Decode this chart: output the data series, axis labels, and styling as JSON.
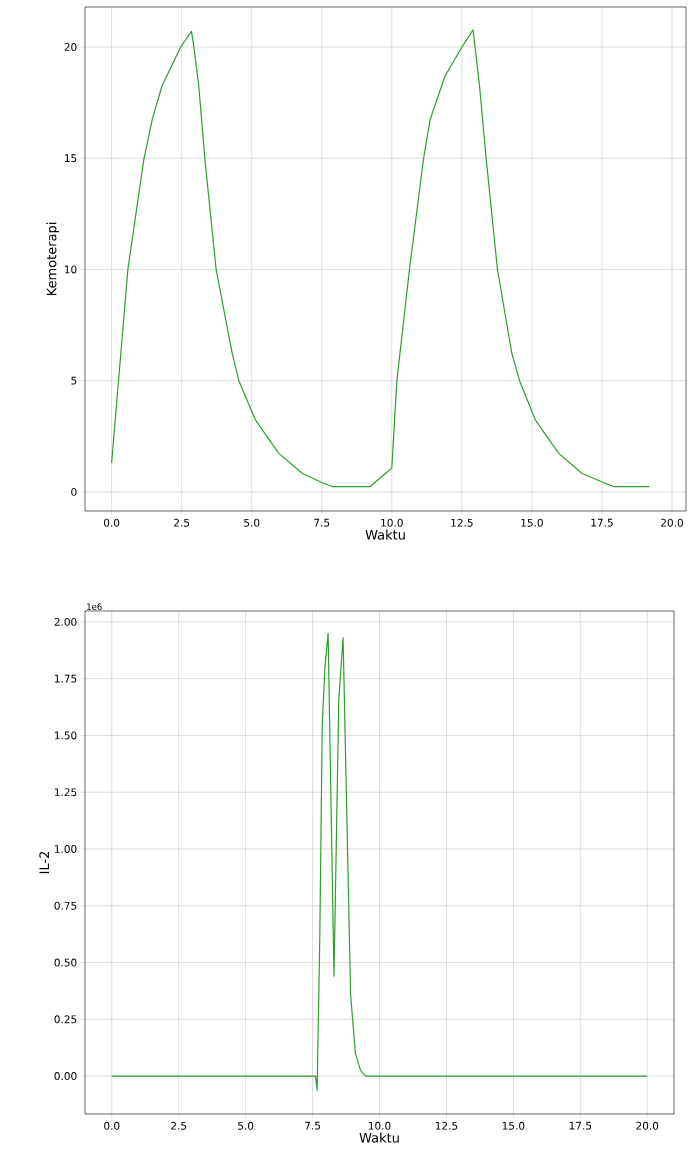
{
  "chart_data": [
    {
      "type": "line",
      "xlabel": "Waktu",
      "ylabel": "Kemoterapi",
      "color": "#2ca02c",
      "grid": true,
      "x": [
        0.0,
        0.58,
        1.15,
        1.45,
        1.8,
        2.46,
        2.85,
        2.93,
        3.11,
        3.33,
        3.73,
        4.3,
        4.54,
        5.13,
        5.96,
        6.8,
        7.5,
        7.87,
        9.23,
        10.0,
        10.18,
        10.63,
        11.13,
        11.37,
        11.9,
        12.5,
        12.9,
        13.13,
        13.37,
        13.77,
        14.28,
        14.56,
        15.12,
        15.95,
        16.78,
        17.55,
        17.91,
        19.19
      ],
      "values": [
        1.3,
        10.0,
        14.95,
        16.75,
        18.26,
        19.99,
        20.7,
        20.06,
        18.26,
        14.95,
        10.0,
        6.25,
        5.0,
        3.24,
        1.74,
        0.84,
        0.42,
        0.24,
        0.24,
        1.07,
        5.0,
        10.0,
        14.95,
        16.75,
        18.7,
        19.99,
        20.77,
        18.26,
        14.95,
        10.0,
        6.25,
        5.0,
        3.24,
        1.74,
        0.84,
        0.42,
        0.24,
        0.24
      ],
      "xlim": [
        -0.95,
        20.5
      ],
      "ylim": [
        -0.86,
        21.8
      ],
      "xticks": [
        {
          "value": 0,
          "label": "0.0"
        },
        {
          "value": 2.5,
          "label": "2.5"
        },
        {
          "value": 5,
          "label": "5.0"
        },
        {
          "value": 7.5,
          "label": "7.5"
        },
        {
          "value": 10,
          "label": "10.0"
        },
        {
          "value": 12.5,
          "label": "12.5"
        },
        {
          "value": 15,
          "label": "15.0"
        },
        {
          "value": 17.5,
          "label": "17.5"
        },
        {
          "value": 20,
          "label": "20.0"
        }
      ],
      "yticks": [
        0,
        5,
        10,
        15,
        20
      ]
    },
    {
      "type": "line",
      "xlabel": "Waktu",
      "ylabel": "IL-2",
      "color": "#2ca02c",
      "grid": true,
      "annotations": [
        "1e6"
      ],
      "x": [
        0.0,
        7.61,
        7.67,
        7.77,
        7.86,
        7.96,
        8.08,
        8.3,
        8.48,
        8.64,
        8.92,
        9.1,
        9.29,
        9.48,
        20.0
      ],
      "values": [
        0,
        0,
        -0.062,
        0.614,
        1.54,
        1.8,
        1.95,
        0.44,
        1.66,
        1.93,
        0.36,
        0.1,
        0.026,
        0,
        0
      ],
      "xlim": [
        -1.0,
        21.0
      ],
      "ylim": [
        -0.167,
        2.048
      ],
      "xticks": [
        {
          "value": 0,
          "label": "0.0"
        },
        {
          "value": 2.5,
          "label": "2.5"
        },
        {
          "value": 5,
          "label": "5.0"
        },
        {
          "value": 7.5,
          "label": "7.5"
        },
        {
          "value": 10,
          "label": "10.0"
        },
        {
          "value": 12.5,
          "label": "12.5"
        },
        {
          "value": 15,
          "label": "15.0"
        },
        {
          "value": 17.5,
          "label": "17.5"
        },
        {
          "value": 20,
          "label": "20.0"
        }
      ],
      "yticks": [
        {
          "value": 0,
          "label": "0.00"
        },
        {
          "value": 0.25,
          "label": "0.25"
        },
        {
          "value": 0.5,
          "label": "0.50"
        },
        {
          "value": 0.75,
          "label": "0.75"
        },
        {
          "value": 1,
          "label": "1.00"
        },
        {
          "value": 1.25,
          "label": "1.25"
        },
        {
          "value": 1.5,
          "label": "1.50"
        },
        {
          "value": 1.75,
          "label": "1.75"
        },
        {
          "value": 2,
          "label": "2.00"
        }
      ]
    }
  ]
}
